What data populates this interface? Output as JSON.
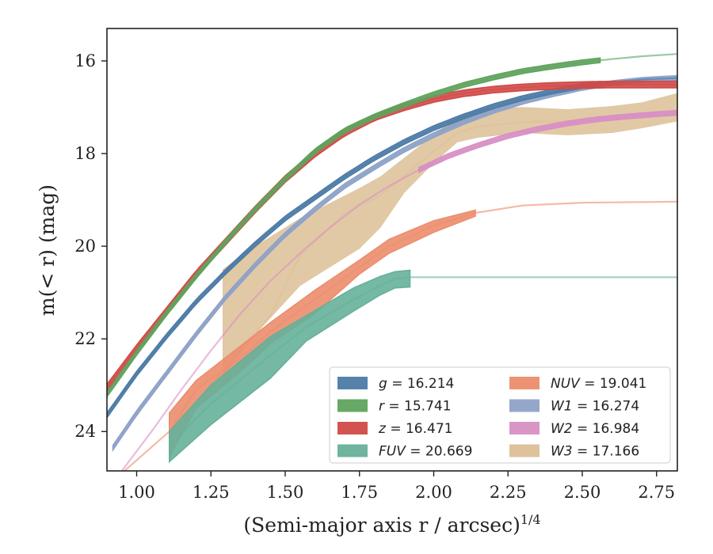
{
  "chart_data": {
    "type": "area",
    "title": "",
    "xlabel": "(Semi-major axis r / arcsec)",
    "xlabel_exponent": "1/4",
    "ylabel": "m(< r) (mag)",
    "xlim": [
      0.9,
      2.82
    ],
    "ylim": [
      24.85,
      15.3
    ],
    "y_inverted": true,
    "x_ticks": [
      1.0,
      1.25,
      1.5,
      1.75,
      2.0,
      2.25,
      2.5,
      2.75
    ],
    "x_tick_labels": [
      "1.00",
      "1.25",
      "1.50",
      "1.75",
      "2.00",
      "2.25",
      "2.50",
      "2.75"
    ],
    "y_ticks": [
      16,
      18,
      20,
      22,
      24
    ],
    "y_tick_labels": [
      "16",
      "18",
      "20",
      "22",
      "24"
    ],
    "grid": false,
    "legend_position": "lower-right",
    "series": [
      {
        "name": "g",
        "label_value": "16.214",
        "color": "#4c7ba6",
        "x": [
          0.9,
          1.0,
          1.1,
          1.2,
          1.3,
          1.4,
          1.5,
          1.6,
          1.7,
          1.8,
          1.9,
          2.0,
          2.1,
          2.2,
          2.3,
          2.4,
          2.5,
          2.6,
          2.7,
          2.82
        ],
        "y": [
          23.65,
          22.75,
          21.95,
          21.2,
          20.55,
          19.95,
          19.4,
          18.95,
          18.5,
          18.1,
          17.75,
          17.45,
          17.2,
          16.98,
          16.8,
          16.66,
          16.54,
          16.46,
          16.4,
          16.37
        ],
        "band_until": 2.56,
        "band_halfwidth": 0.05
      },
      {
        "name": "r",
        "label_value": "15.741",
        "color": "#5fa35d",
        "x": [
          0.9,
          1.0,
          1.1,
          1.2,
          1.3,
          1.4,
          1.5,
          1.6,
          1.7,
          1.8,
          1.9,
          2.0,
          2.1,
          2.2,
          2.3,
          2.4,
          2.5,
          2.6,
          2.7,
          2.82
        ],
        "y": [
          23.2,
          22.3,
          21.45,
          20.65,
          19.9,
          19.2,
          18.55,
          17.95,
          17.5,
          17.2,
          16.95,
          16.72,
          16.52,
          16.36,
          16.22,
          16.12,
          16.03,
          15.96,
          15.9,
          15.85
        ],
        "band_until": 2.56,
        "band_halfwidth": 0.05
      },
      {
        "name": "z",
        "label_value": "16.471",
        "color": "#d04a47",
        "x": [
          0.9,
          1.0,
          1.1,
          1.2,
          1.3,
          1.4,
          1.5,
          1.6,
          1.7,
          1.8,
          1.9,
          2.0,
          2.1,
          2.2,
          2.3,
          2.4,
          2.5,
          2.6,
          2.7,
          2.82
        ],
        "y": [
          23.05,
          22.2,
          21.4,
          20.6,
          19.9,
          19.2,
          18.55,
          18.0,
          17.55,
          17.22,
          17.0,
          16.82,
          16.7,
          16.62,
          16.57,
          16.54,
          16.52,
          16.51,
          16.51,
          16.51
        ],
        "band_until": 2.82,
        "band_halfwidth": 0.07
      },
      {
        "name": "FUV",
        "label_value": "20.669",
        "color": "#66b09a",
        "x": [
          1.11,
          1.25,
          1.45,
          1.57,
          1.73,
          1.82,
          1.87,
          1.92,
          2.1,
          2.4,
          2.82
        ],
        "y": [
          24.3,
          23.4,
          22.35,
          21.75,
          21.15,
          20.85,
          20.7,
          20.67,
          20.67,
          20.67,
          20.67
        ],
        "band_until": 1.92,
        "band_upper": [
          24.0,
          23.0,
          21.95,
          21.5,
          20.9,
          20.65,
          20.55,
          20.52
        ],
        "band_lower": [
          24.65,
          23.85,
          22.85,
          22.05,
          21.4,
          21.05,
          20.9,
          20.88
        ]
      },
      {
        "name": "NUV",
        "label_value": "19.041",
        "color": "#ec8d6d",
        "x": [
          0.95,
          1.11,
          1.2,
          1.35,
          1.45,
          1.6,
          1.75,
          1.85,
          2.0,
          2.14,
          2.3,
          2.5,
          2.82
        ],
        "y": [
          24.9,
          24.0,
          23.1,
          22.4,
          21.85,
          21.15,
          20.45,
          20.0,
          19.55,
          19.28,
          19.12,
          19.06,
          19.04
        ],
        "band_start": 1.11,
        "band_until": 2.14,
        "band_upper": [
          23.6,
          22.9,
          22.15,
          21.65,
          20.95,
          20.3,
          19.85,
          19.45,
          19.22
        ],
        "band_lower": [
          24.55,
          23.5,
          22.7,
          22.1,
          21.45,
          20.6,
          20.15,
          19.7,
          19.35
        ]
      },
      {
        "name": "W1",
        "label_value": "16.274",
        "color": "#8ea2c8",
        "x": [
          0.92,
          1.0,
          1.1,
          1.2,
          1.3,
          1.4,
          1.5,
          1.6,
          1.7,
          1.8,
          1.9,
          2.0,
          2.1,
          2.2,
          2.3,
          2.4,
          2.5,
          2.6,
          2.7,
          2.82
        ],
        "y": [
          24.35,
          23.6,
          22.75,
          21.9,
          21.1,
          20.4,
          19.75,
          19.2,
          18.7,
          18.3,
          17.92,
          17.6,
          17.32,
          17.08,
          16.88,
          16.72,
          16.58,
          16.48,
          16.41,
          16.37
        ],
        "band_until": 2.82,
        "band_halfwidth": 0.05
      },
      {
        "name": "W2",
        "label_value": "16.984",
        "color": "#d88fc4",
        "x": [
          0.95,
          1.05,
          1.15,
          1.25,
          1.35,
          1.45,
          1.55,
          1.65,
          1.75,
          1.85,
          1.95,
          2.05,
          2.15,
          2.25,
          2.35,
          2.45,
          2.55,
          2.65,
          2.75,
          2.82
        ],
        "y": [
          24.85,
          24.0,
          23.1,
          22.25,
          21.45,
          20.75,
          20.15,
          19.6,
          19.1,
          18.7,
          18.35,
          18.05,
          17.82,
          17.62,
          17.47,
          17.35,
          17.26,
          17.2,
          17.15,
          17.12
        ],
        "band_start": 1.95,
        "band_until": 2.82,
        "band_halfwidth": 0.05
      },
      {
        "name": "W3",
        "label_value": "17.166",
        "color": "#dcbf96",
        "x": [
          1.11,
          1.29,
          1.45,
          1.55,
          1.7,
          1.82,
          1.9,
          2.0,
          2.08,
          2.15,
          2.3,
          2.45,
          2.6,
          2.7,
          2.82
        ],
        "y": [
          24.0,
          22.7,
          21.5,
          20.2,
          19.3,
          18.9,
          18.5,
          17.95,
          17.55,
          17.42,
          17.32,
          17.3,
          17.25,
          17.2,
          17.1
        ],
        "band_x": [
          1.29,
          1.4,
          1.55,
          1.75,
          1.82,
          1.9,
          2.0,
          2.08,
          2.15,
          2.3,
          2.45,
          2.6,
          2.7,
          2.82
        ],
        "band_upper": [
          20.5,
          20.0,
          19.4,
          18.75,
          18.5,
          18.1,
          17.6,
          17.2,
          17.05,
          17.0,
          17.05,
          16.98,
          16.9,
          16.7
        ],
        "band_lower": [
          22.8,
          21.9,
          20.85,
          20.05,
          19.6,
          18.85,
          18.2,
          17.75,
          17.65,
          17.55,
          17.6,
          17.55,
          17.45,
          17.3
        ]
      }
    ]
  }
}
